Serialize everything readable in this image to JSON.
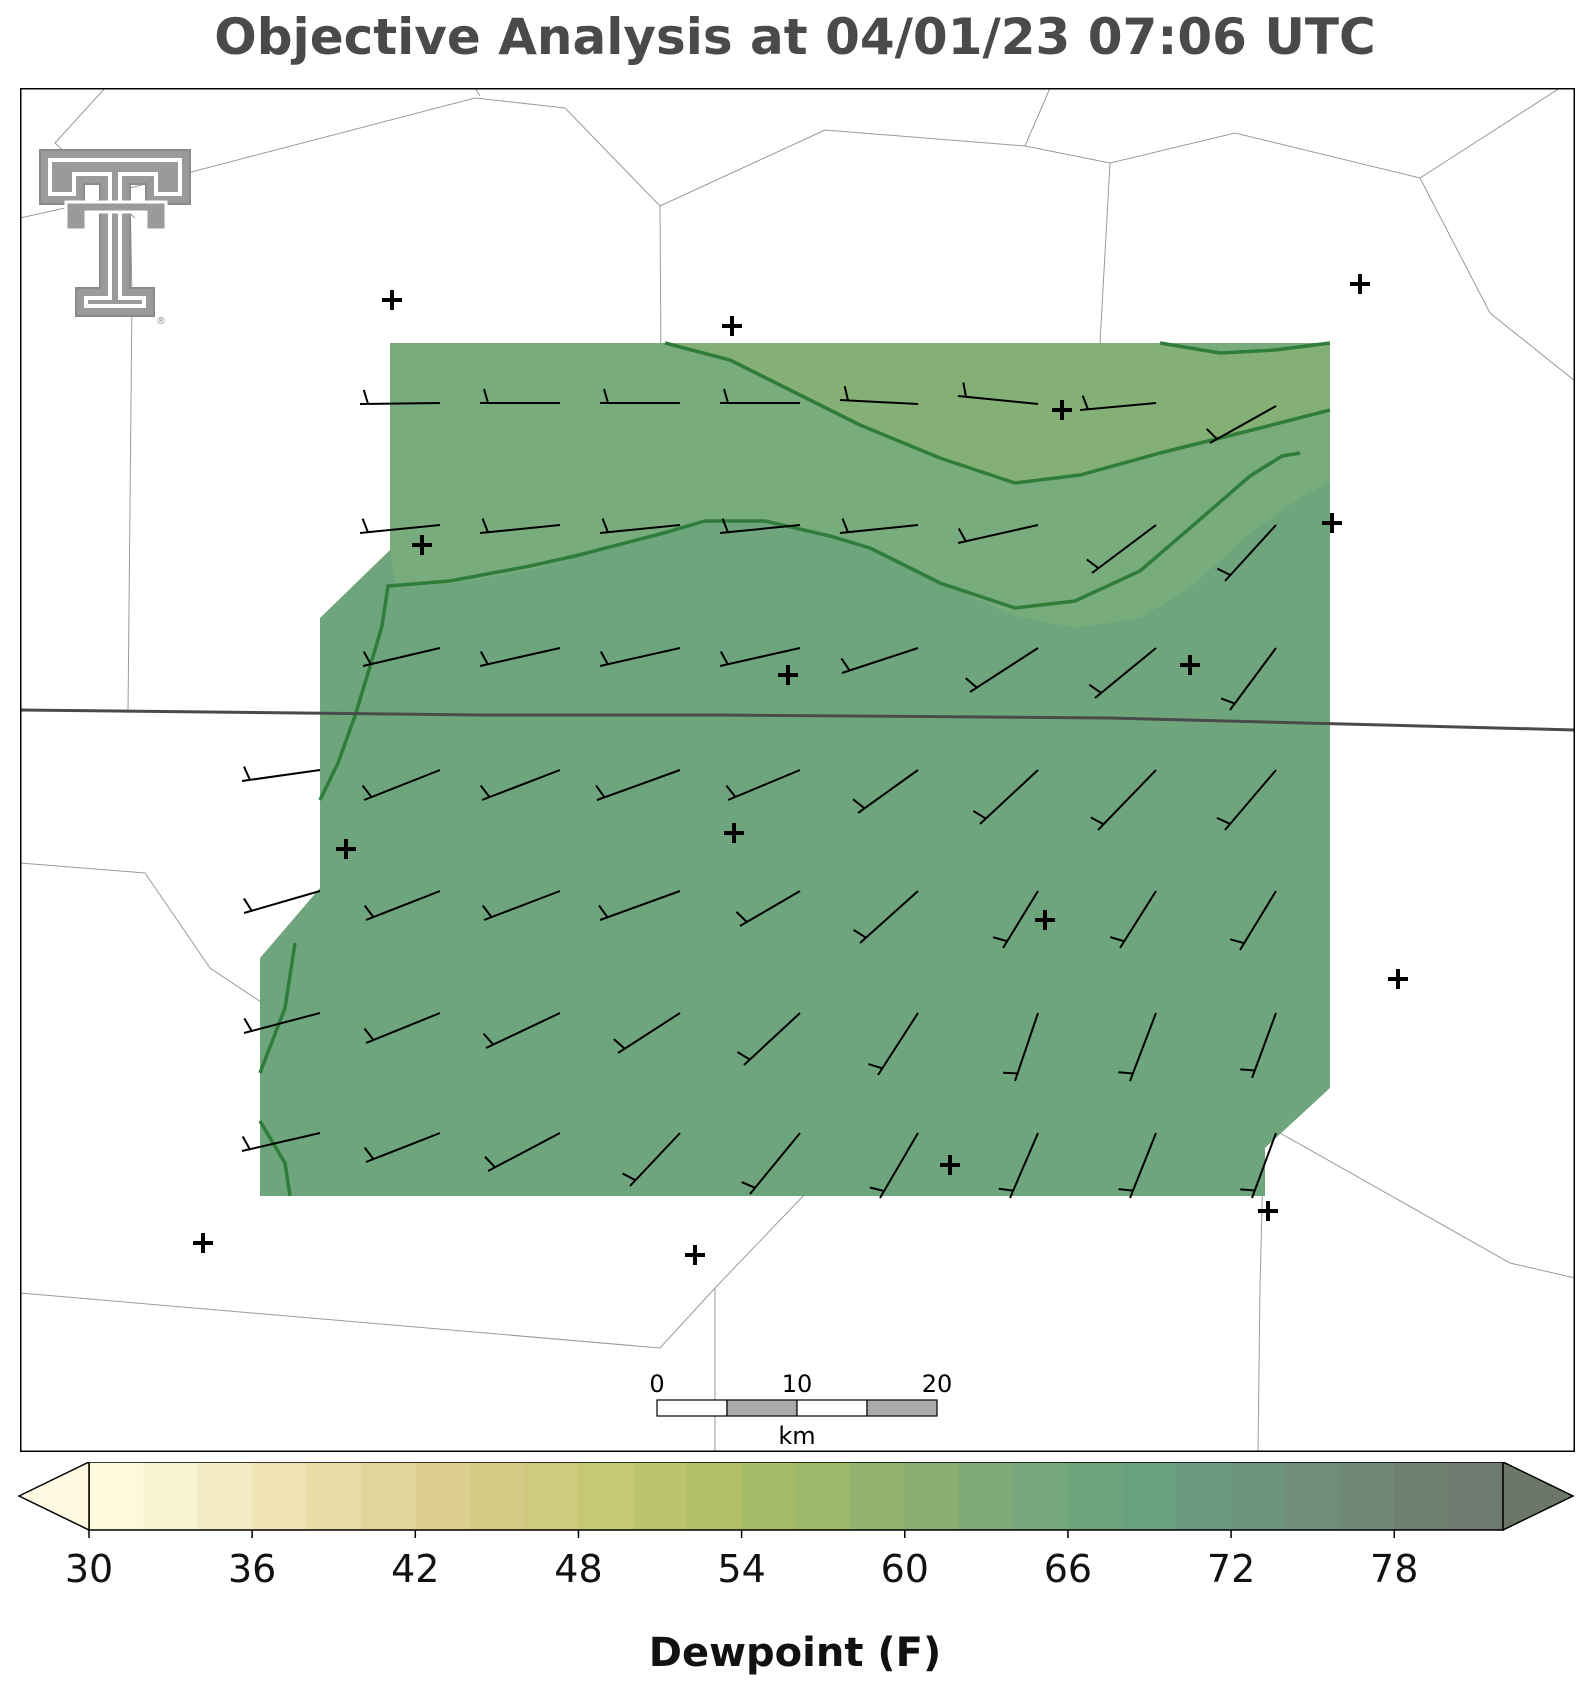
{
  "title": "Objective Analysis at 04/01/23 07:06 UTC",
  "colorbar": {
    "label": "Dewpoint (F)",
    "ticks": [
      "30",
      "36",
      "42",
      "48",
      "54",
      "60",
      "66",
      "72",
      "78"
    ],
    "colors": [
      "#fdf9dc",
      "#faf3d0",
      "#f4ebc4",
      "#efe3b6",
      "#e9dda8",
      "#e2d59c",
      "#dccf90",
      "#d5cb86",
      "#cfca7c",
      "#c7c873",
      "#bcc46d",
      "#b1c067",
      "#a6bb67",
      "#9cb86a",
      "#92b36f",
      "#88ae74",
      "#7eaa77",
      "#76a77a",
      "#6ea47c",
      "#69a07f",
      "#699a80",
      "#6c947d",
      "#6e8e79",
      "#6f8776",
      "#6f8073",
      "#6d7a70"
    ],
    "under_color": "#fefbe2",
    "over_color": "#6b7667"
  },
  "fill_colors": {
    "band_57_60": "#84b076",
    "band_60_63": "#79ac7d",
    "band_63_66": "#6fa57d",
    "contour": "#2f7d3a"
  },
  "scale_bar": {
    "labels": [
      "0",
      "10",
      "20"
    ],
    "unit": "km"
  },
  "logo": {
    "name": "texas-tech-double-t-logo",
    "trademark": "®"
  }
}
